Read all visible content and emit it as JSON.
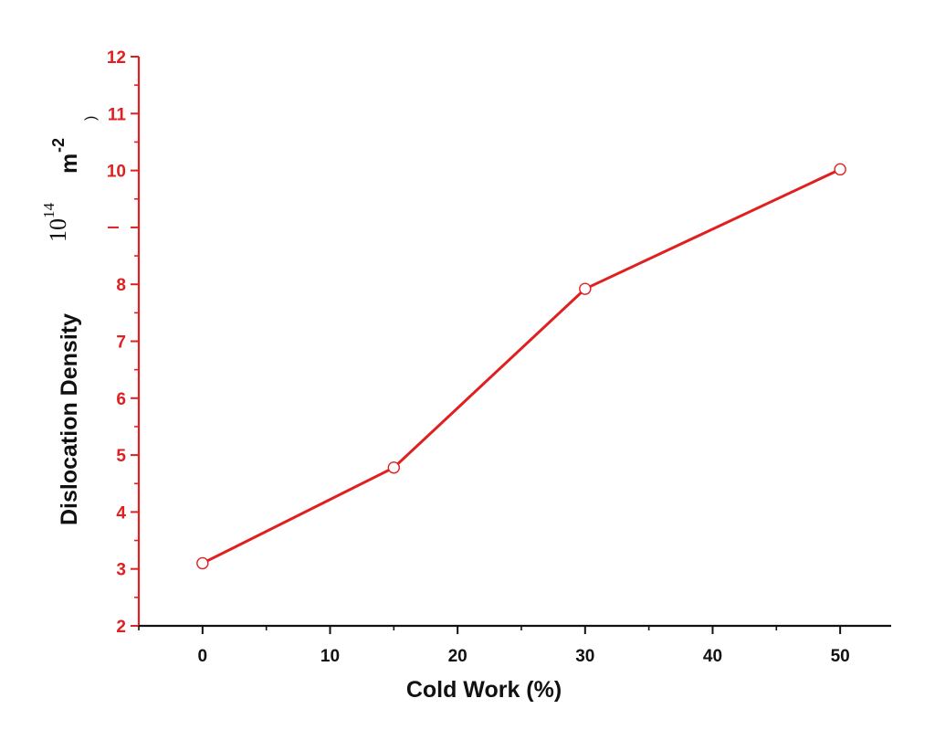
{
  "chart_data": {
    "type": "line",
    "xlabel": "Cold Work (%)",
    "ylabel": {
      "main": "Dislocation Density",
      "scale": "10",
      "scale_exponent": "14",
      "unit": "m",
      "unit_exponent": "-2",
      "close_paren": ")"
    },
    "xlim": [
      -5,
      54
    ],
    "ylim": [
      2,
      12
    ],
    "x_ticks": [
      0,
      10,
      20,
      30,
      40,
      50
    ],
    "x_tick_labels": [
      "0",
      "10",
      "20",
      "30",
      "40",
      "50"
    ],
    "y_ticks": [
      2,
      3,
      4,
      5,
      6,
      7,
      8,
      9,
      10,
      11,
      12
    ],
    "y_tick_labels": [
      "2",
      "3",
      "4",
      "5",
      "6",
      "7",
      "8",
      "",
      "10",
      "11",
      "12"
    ],
    "grid": false,
    "series": [
      {
        "x": [
          0,
          15,
          30,
          50
        ],
        "y": [
          3.1,
          4.78,
          7.92,
          10.02
        ],
        "color": "#e02020",
        "marker": "open-circle"
      }
    ]
  }
}
